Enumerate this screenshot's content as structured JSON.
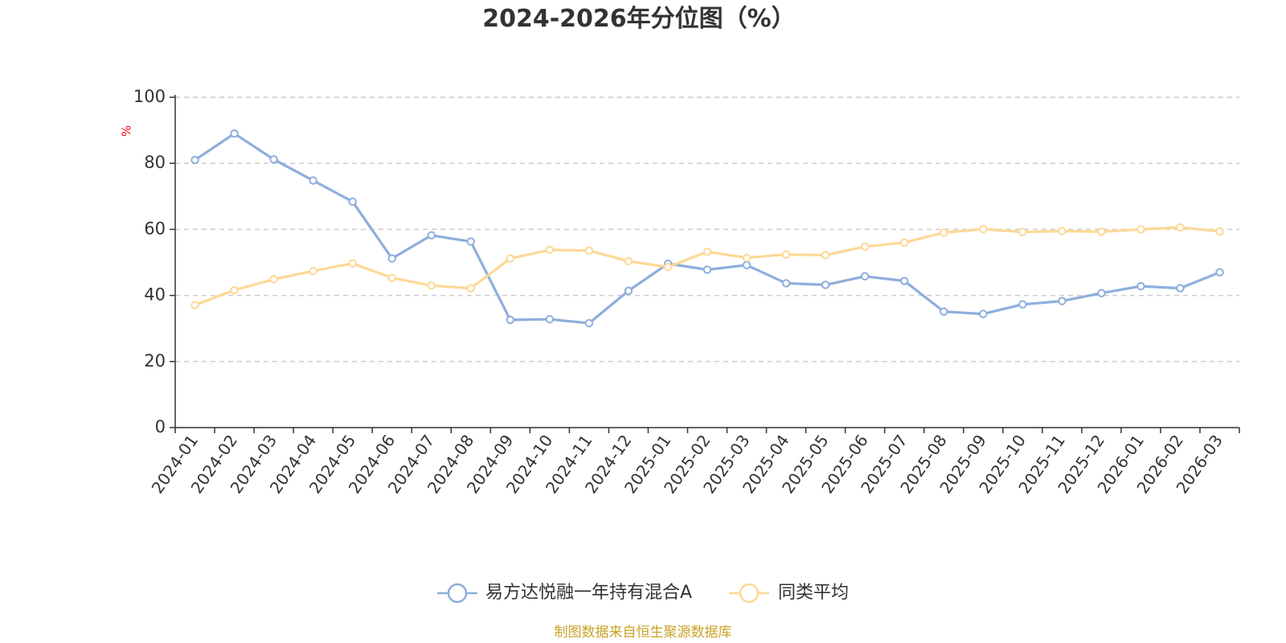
{
  "chart_data": {
    "type": "line",
    "title": "2024-2026年分位图（%）",
    "ylabel": "%",
    "ylim": [
      0,
      100
    ],
    "yticks": [
      0,
      20,
      40,
      60,
      80,
      100
    ],
    "grid": true,
    "legend_position": "bottom",
    "categories": [
      "2024-01",
      "2024-02",
      "2024-03",
      "2024-04",
      "2024-05",
      "2024-06",
      "2024-07",
      "2024-08",
      "2024-09",
      "2024-10",
      "2024-11",
      "2024-12",
      "2025-01",
      "2025-02",
      "2025-03",
      "2025-04",
      "2025-05",
      "2025-06",
      "2025-07",
      "2025-08",
      "2025-09",
      "2025-10",
      "2025-11",
      "2025-12",
      "2026-01",
      "2026-02",
      "2026-03"
    ],
    "series": [
      {
        "name": "易方达悦融一年持有混合A",
        "color": "#8eaedc",
        "values": [
          81.0,
          89.0,
          81.2,
          74.8,
          68.4,
          51.2,
          58.2,
          56.3,
          32.6,
          32.8,
          31.6,
          41.4,
          49.6,
          47.8,
          49.2,
          43.7,
          43.2,
          45.8,
          44.4,
          35.1,
          34.4,
          37.3,
          38.3,
          40.7,
          42.8,
          42.2,
          47.0
        ]
      },
      {
        "name": "同类平均",
        "color": "#fdd896",
        "values": [
          37.1,
          41.6,
          44.9,
          47.4,
          49.7,
          45.3,
          43.0,
          42.2,
          51.2,
          53.8,
          53.6,
          50.4,
          48.6,
          53.2,
          51.4,
          52.4,
          52.2,
          54.8,
          56.0,
          59.0,
          60.1,
          59.2,
          59.5,
          59.3,
          60.0,
          60.6,
          59.4
        ]
      }
    ]
  },
  "source_text": "制图数据来自恒生聚源数据库",
  "colors": {
    "unit": "#ff0000",
    "source": "#c9a227",
    "axis": "#333333",
    "grid": "#cccccc"
  }
}
